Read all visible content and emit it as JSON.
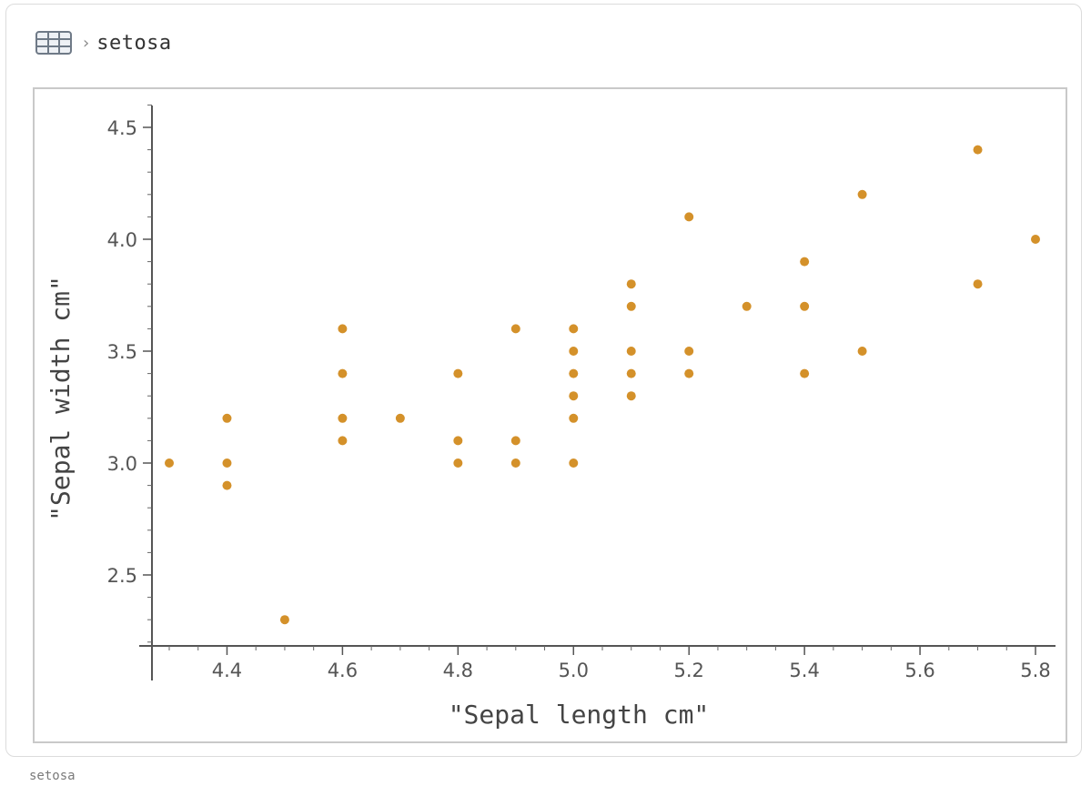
{
  "breadcrumb": {
    "icon": "table-icon",
    "separator": "›",
    "label": "setosa"
  },
  "caption_below": "setosa",
  "chart_data": {
    "type": "scatter",
    "title": "",
    "xlabel": "\"Sepal length cm\"",
    "ylabel": "\"Sepal width cm\"",
    "xlim": [
      4.3,
      5.8
    ],
    "ylim": [
      2.2,
      4.6
    ],
    "xticks": [
      4.4,
      4.6,
      4.8,
      5.0,
      5.2,
      5.4,
      5.6,
      5.8
    ],
    "xtick_labels": [
      "4.4",
      "4.6",
      "4.8",
      "5.0",
      "5.2",
      "5.4",
      "5.6",
      "5.8"
    ],
    "yticks": [
      2.5,
      3.0,
      3.5,
      4.0,
      4.5
    ],
    "ytick_labels": [
      "2.5",
      "3.0",
      "3.5",
      "4.0",
      "4.5"
    ],
    "grid": false,
    "point_color": "#d4912a",
    "points": [
      [
        4.3,
        3.0
      ],
      [
        4.4,
        3.2
      ],
      [
        4.4,
        3.0
      ],
      [
        4.4,
        2.9
      ],
      [
        4.5,
        2.3
      ],
      [
        4.6,
        3.6
      ],
      [
        4.6,
        3.4
      ],
      [
        4.6,
        3.2
      ],
      [
        4.6,
        3.1
      ],
      [
        4.7,
        3.2
      ],
      [
        4.8,
        3.4
      ],
      [
        4.8,
        3.1
      ],
      [
        4.8,
        3.0
      ],
      [
        4.9,
        3.6
      ],
      [
        4.9,
        3.1
      ],
      [
        4.9,
        3.0
      ],
      [
        5.0,
        3.6
      ],
      [
        5.0,
        3.5
      ],
      [
        5.0,
        3.4
      ],
      [
        5.0,
        3.3
      ],
      [
        5.0,
        3.2
      ],
      [
        5.0,
        3.0
      ],
      [
        5.1,
        3.8
      ],
      [
        5.1,
        3.7
      ],
      [
        5.1,
        3.5
      ],
      [
        5.1,
        3.4
      ],
      [
        5.1,
        3.3
      ],
      [
        5.2,
        4.1
      ],
      [
        5.2,
        3.5
      ],
      [
        5.2,
        3.4
      ],
      [
        5.3,
        3.7
      ],
      [
        5.4,
        3.9
      ],
      [
        5.4,
        3.7
      ],
      [
        5.4,
        3.4
      ],
      [
        5.5,
        4.2
      ],
      [
        5.5,
        3.5
      ],
      [
        5.7,
        4.4
      ],
      [
        5.7,
        3.8
      ],
      [
        5.8,
        4.0
      ]
    ]
  }
}
